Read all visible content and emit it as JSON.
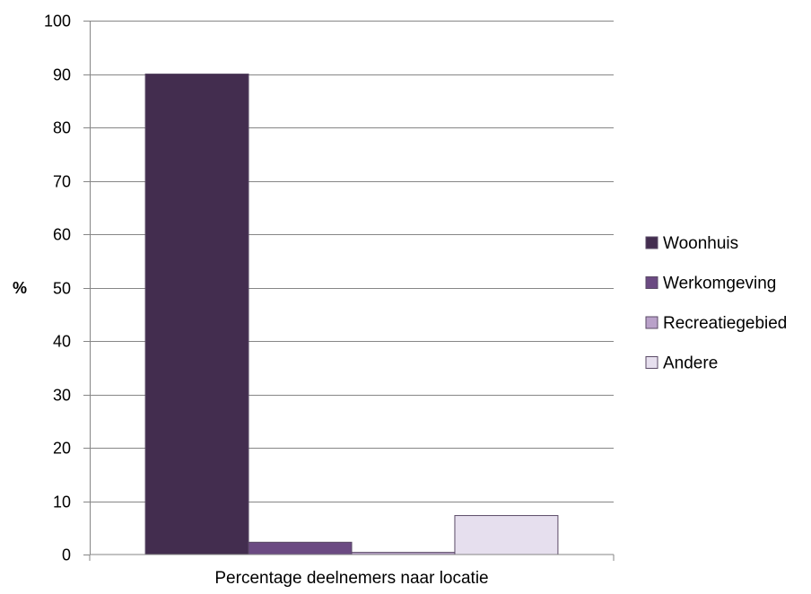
{
  "chart_data": {
    "type": "bar",
    "categories": [
      "Percentage deelnemers naar locatie"
    ],
    "series": [
      {
        "name": "Woonhuis",
        "values": [
          90
        ],
        "color": "#432d4f"
      },
      {
        "name": "Werkomgeving",
        "values": [
          2.3
        ],
        "color": "#6b4a82"
      },
      {
        "name": "Recreatiegebied",
        "values": [
          0.4
        ],
        "color": "#b9a1c9"
      },
      {
        "name": "Andere",
        "values": [
          7.3
        ],
        "color": "#e6dfee"
      }
    ],
    "title": "",
    "xlabel": "Percentage deelnemers naar locatie",
    "ylabel": "%",
    "ylim": [
      0,
      100
    ],
    "yticks": [
      0,
      10,
      20,
      30,
      40,
      50,
      60,
      70,
      80,
      90,
      100
    ],
    "grid": true,
    "legend_position": "right"
  }
}
